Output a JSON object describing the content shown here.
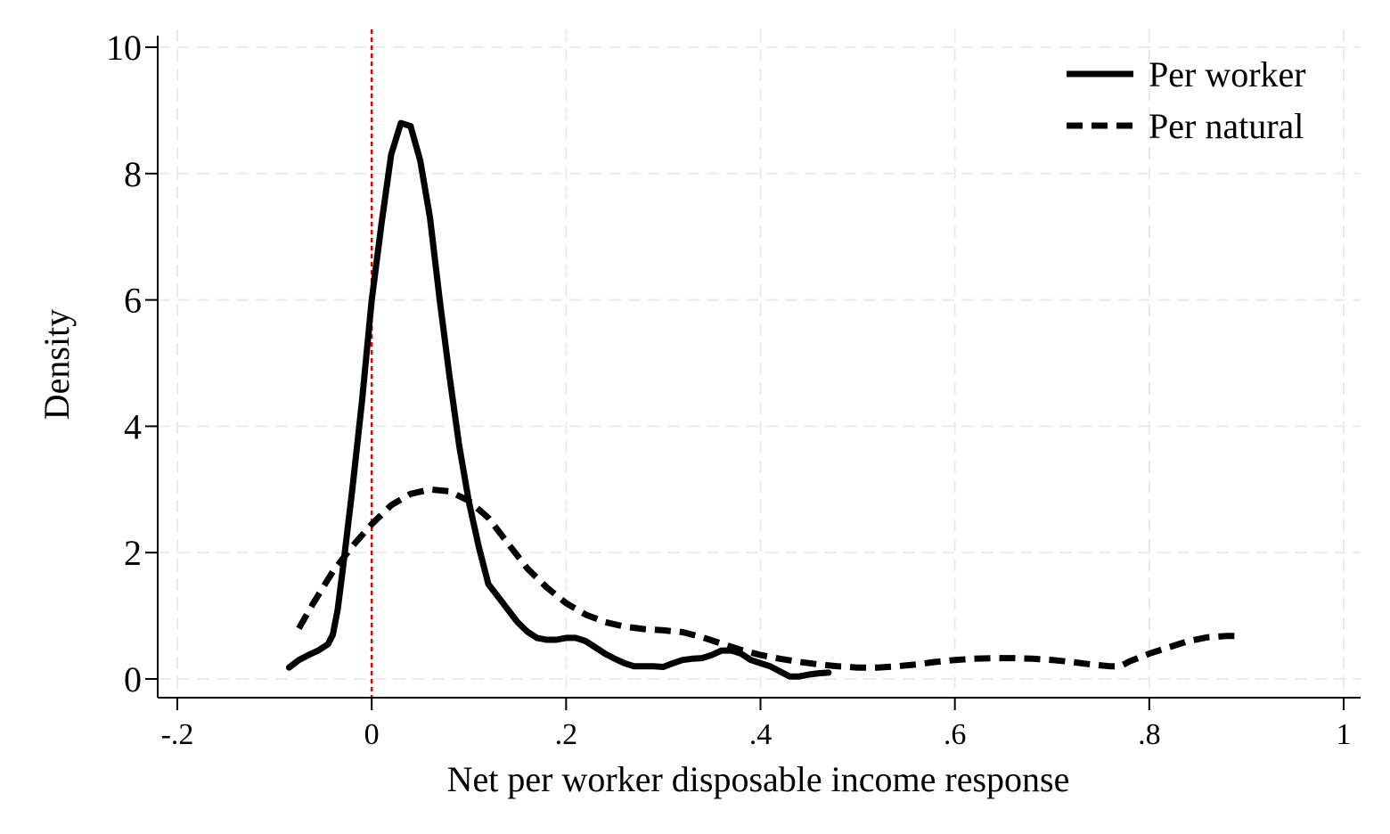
{
  "chart_data": {
    "type": "line",
    "xlabel": "Net per worker disposable income response",
    "ylabel": "Density",
    "xlim": [
      -0.2,
      1.0
    ],
    "ylim": [
      0,
      10
    ],
    "x_ticks": [
      -0.2,
      0,
      0.2,
      0.4,
      0.6,
      0.8,
      1.0
    ],
    "x_tick_labels": [
      "-.2",
      "0",
      ".2",
      ".4",
      ".6",
      ".8",
      "1"
    ],
    "y_ticks": [
      0,
      2,
      4,
      6,
      8,
      10
    ],
    "y_tick_labels": [
      "0",
      "2",
      "4",
      "6",
      "8",
      "10"
    ],
    "grid": true,
    "legend_position": "top-right",
    "reference_line": {
      "x": 0,
      "color": "#e00000",
      "style": "dotted"
    },
    "series": [
      {
        "name": "Per worker",
        "style": "solid",
        "color": "#000000",
        "points": [
          [
            -0.085,
            0.18
          ],
          [
            -0.075,
            0.3
          ],
          [
            -0.065,
            0.38
          ],
          [
            -0.055,
            0.45
          ],
          [
            -0.045,
            0.55
          ],
          [
            -0.04,
            0.7
          ],
          [
            -0.035,
            1.1
          ],
          [
            -0.03,
            1.7
          ],
          [
            -0.02,
            3.0
          ],
          [
            -0.01,
            4.4
          ],
          [
            0.0,
            6.0
          ],
          [
            0.01,
            7.2
          ],
          [
            0.02,
            8.3
          ],
          [
            0.03,
            8.8
          ],
          [
            0.04,
            8.75
          ],
          [
            0.05,
            8.2
          ],
          [
            0.06,
            7.3
          ],
          [
            0.07,
            6.0
          ],
          [
            0.08,
            4.8
          ],
          [
            0.09,
            3.7
          ],
          [
            0.1,
            2.8
          ],
          [
            0.11,
            2.1
          ],
          [
            0.12,
            1.5
          ],
          [
            0.13,
            1.3
          ],
          [
            0.14,
            1.1
          ],
          [
            0.15,
            0.9
          ],
          [
            0.16,
            0.75
          ],
          [
            0.17,
            0.65
          ],
          [
            0.18,
            0.62
          ],
          [
            0.19,
            0.62
          ],
          [
            0.2,
            0.65
          ],
          [
            0.21,
            0.65
          ],
          [
            0.22,
            0.6
          ],
          [
            0.23,
            0.5
          ],
          [
            0.24,
            0.4
          ],
          [
            0.25,
            0.32
          ],
          [
            0.26,
            0.25
          ],
          [
            0.27,
            0.2
          ],
          [
            0.28,
            0.2
          ],
          [
            0.29,
            0.2
          ],
          [
            0.3,
            0.19
          ],
          [
            0.31,
            0.25
          ],
          [
            0.32,
            0.3
          ],
          [
            0.33,
            0.32
          ],
          [
            0.34,
            0.33
          ],
          [
            0.35,
            0.38
          ],
          [
            0.36,
            0.45
          ],
          [
            0.37,
            0.45
          ],
          [
            0.38,
            0.4
          ],
          [
            0.39,
            0.3
          ],
          [
            0.4,
            0.25
          ],
          [
            0.41,
            0.2
          ],
          [
            0.42,
            0.12
          ],
          [
            0.43,
            0.04
          ],
          [
            0.44,
            0.04
          ],
          [
            0.45,
            0.07
          ],
          [
            0.46,
            0.09
          ],
          [
            0.47,
            0.1
          ]
        ]
      },
      {
        "name": "Per natural",
        "style": "dashed",
        "color": "#000000",
        "points": [
          [
            -0.075,
            0.8
          ],
          [
            -0.06,
            1.2
          ],
          [
            -0.04,
            1.7
          ],
          [
            -0.02,
            2.1
          ],
          [
            0.0,
            2.45
          ],
          [
            0.02,
            2.75
          ],
          [
            0.04,
            2.93
          ],
          [
            0.06,
            3.0
          ],
          [
            0.08,
            2.97
          ],
          [
            0.1,
            2.82
          ],
          [
            0.12,
            2.55
          ],
          [
            0.14,
            2.15
          ],
          [
            0.16,
            1.75
          ],
          [
            0.18,
            1.45
          ],
          [
            0.2,
            1.2
          ],
          [
            0.22,
            1.02
          ],
          [
            0.24,
            0.9
          ],
          [
            0.26,
            0.83
          ],
          [
            0.28,
            0.79
          ],
          [
            0.3,
            0.77
          ],
          [
            0.32,
            0.74
          ],
          [
            0.34,
            0.66
          ],
          [
            0.36,
            0.56
          ],
          [
            0.38,
            0.46
          ],
          [
            0.4,
            0.38
          ],
          [
            0.42,
            0.32
          ],
          [
            0.44,
            0.27
          ],
          [
            0.46,
            0.23
          ],
          [
            0.48,
            0.2
          ],
          [
            0.5,
            0.18
          ],
          [
            0.52,
            0.18
          ],
          [
            0.54,
            0.2
          ],
          [
            0.56,
            0.23
          ],
          [
            0.58,
            0.27
          ],
          [
            0.6,
            0.3
          ],
          [
            0.62,
            0.32
          ],
          [
            0.64,
            0.33
          ],
          [
            0.66,
            0.33
          ],
          [
            0.68,
            0.32
          ],
          [
            0.7,
            0.3
          ],
          [
            0.72,
            0.27
          ],
          [
            0.74,
            0.23
          ],
          [
            0.76,
            0.2
          ],
          [
            0.77,
            0.2
          ],
          [
            0.78,
            0.28
          ],
          [
            0.8,
            0.4
          ],
          [
            0.82,
            0.5
          ],
          [
            0.84,
            0.6
          ],
          [
            0.86,
            0.66
          ],
          [
            0.88,
            0.68
          ],
          [
            0.89,
            0.68
          ]
        ]
      }
    ]
  }
}
